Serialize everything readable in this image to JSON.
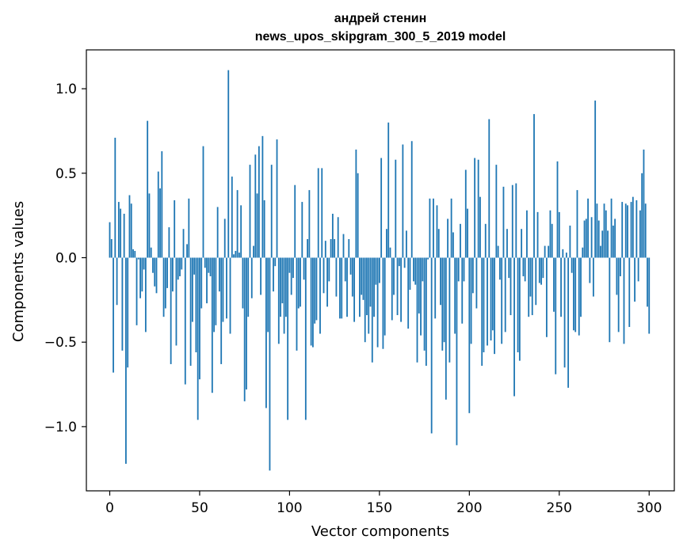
{
  "chart_data": {
    "type": "bar",
    "title": "андрей стенин",
    "subtitle": "news_upos_skipgram_300_5_2019 model",
    "xlabel": "Vector components",
    "ylabel": "Components values",
    "xlim": [
      -13,
      314
    ],
    "ylim": [
      -1.38,
      1.23
    ],
    "xticks": [
      0,
      50,
      100,
      150,
      200,
      250,
      300
    ],
    "xtick_labels": [
      "0",
      "50",
      "100",
      "150",
      "200",
      "250",
      "300"
    ],
    "yticks": [
      -1.0,
      -0.5,
      0.0,
      0.5,
      1.0
    ],
    "ytick_labels": [
      "−1.0",
      "−0.5",
      "0.0",
      "0.5",
      "1.0"
    ],
    "grid": false,
    "bar_color": "#1f77b4",
    "series": [
      {
        "values": [
          0.21,
          0.11,
          -0.68,
          0.71,
          -0.28,
          0.33,
          0.29,
          -0.55,
          0.26,
          -1.22,
          -0.65,
          0.37,
          0.32,
          0.05,
          0.04,
          -0.4,
          -0.01,
          -0.24,
          -0.2,
          -0.07,
          -0.44,
          0.81,
          0.38,
          0.06,
          -0.09,
          -0.17,
          -0.21,
          0.51,
          0.41,
          0.63,
          -0.35,
          -0.3,
          -0.18,
          0.18,
          -0.63,
          -0.2,
          0.34,
          -0.52,
          -0.13,
          -0.11,
          -0.07,
          0.17,
          -0.75,
          0.08,
          0.35,
          -0.64,
          -0.38,
          -0.1,
          -0.56,
          -0.96,
          -0.72,
          -0.3,
          0.66,
          -0.06,
          -0.27,
          -0.09,
          -0.11,
          -0.8,
          -0.44,
          -0.4,
          0.3,
          -0.2,
          -0.63,
          -0.38,
          0.23,
          -0.36,
          1.11,
          -0.45,
          0.48,
          0.02,
          0.04,
          0.4,
          0.03,
          0.31,
          -0.3,
          -0.85,
          -0.78,
          -0.35,
          0.55,
          -0.24,
          0.07,
          0.61,
          0.38,
          0.66,
          -0.22,
          0.72,
          0.34,
          -0.89,
          -0.44,
          -1.26,
          0.55,
          -0.2,
          -0.05,
          0.7,
          -0.51,
          -0.35,
          -0.27,
          -0.45,
          -0.35,
          -0.96,
          -0.09,
          -0.22,
          -0.12,
          0.43,
          -0.55,
          -0.3,
          -0.29,
          0.33,
          -0.13,
          -0.96,
          0.11,
          0.4,
          -0.52,
          -0.53,
          -0.39,
          -0.37,
          0.53,
          -0.45,
          0.53,
          -0.21,
          0.1,
          -0.29,
          -0.14,
          0.11,
          0.26,
          0.11,
          -0.23,
          0.24,
          -0.36,
          -0.36,
          0.14,
          -0.14,
          -0.35,
          0.11,
          -0.1,
          -0.23,
          -0.38,
          0.64,
          0.5,
          -0.35,
          -0.22,
          -0.25,
          -0.5,
          -0.34,
          -0.45,
          -0.29,
          -0.62,
          -0.35,
          -0.16,
          -0.53,
          -0.15,
          0.59,
          -0.54,
          -0.46,
          0.17,
          0.8,
          0.06,
          -0.37,
          -0.22,
          0.58,
          -0.34,
          -0.05,
          -0.38,
          0.67,
          -0.06,
          0.16,
          -0.42,
          -0.19,
          0.69,
          -0.14,
          -0.16,
          -0.62,
          -0.33,
          -0.46,
          -0.14,
          -0.55,
          -0.64,
          -0.01,
          0.35,
          -1.04,
          0.35,
          -0.36,
          0.31,
          0.17,
          -0.28,
          -0.55,
          -0.5,
          -0.84,
          0.23,
          -0.62,
          0.35,
          0.15,
          -0.45,
          -1.11,
          -0.14,
          0.2,
          -0.39,
          -0.14,
          0.52,
          0.29,
          -0.92,
          -0.51,
          -0.21,
          0.59,
          -0.3,
          0.58,
          0.36,
          -0.64,
          -0.56,
          0.2,
          -0.52,
          0.82,
          -0.49,
          -0.43,
          -0.57,
          0.55,
          0.07,
          -0.13,
          -0.51,
          0.42,
          -0.44,
          0.17,
          -0.12,
          -0.34,
          0.43,
          -0.82,
          0.44,
          -0.56,
          -0.61,
          0.17,
          -0.11,
          -0.14,
          0.28,
          -0.35,
          -0.23,
          -0.34,
          0.85,
          -0.28,
          0.27,
          -0.15,
          -0.16,
          -0.12,
          0.07,
          -0.47,
          0.07,
          0.28,
          0.2,
          -0.32,
          -0.69,
          0.57,
          0.27,
          -0.35,
          0.05,
          -0.65,
          0.03,
          -0.77,
          0.19,
          -0.09,
          -0.43,
          -0.44,
          0.4,
          -0.46,
          -0.35,
          0.06,
          0.22,
          0.23,
          0.35,
          -0.15,
          0.24,
          -0.23,
          0.93,
          0.32,
          0.22,
          0.07,
          0.16,
          0.32,
          0.28,
          0.16,
          -0.5,
          0.35,
          0.19,
          0.23,
          -0.22,
          -0.44,
          -0.11,
          0.33,
          -0.51,
          0.32,
          0.31,
          -0.41,
          0.33,
          0.36,
          -0.26,
          0.34,
          -0.14,
          0.28,
          0.5,
          0.64,
          0.32,
          -0.29,
          -0.45
        ]
      }
    ]
  }
}
